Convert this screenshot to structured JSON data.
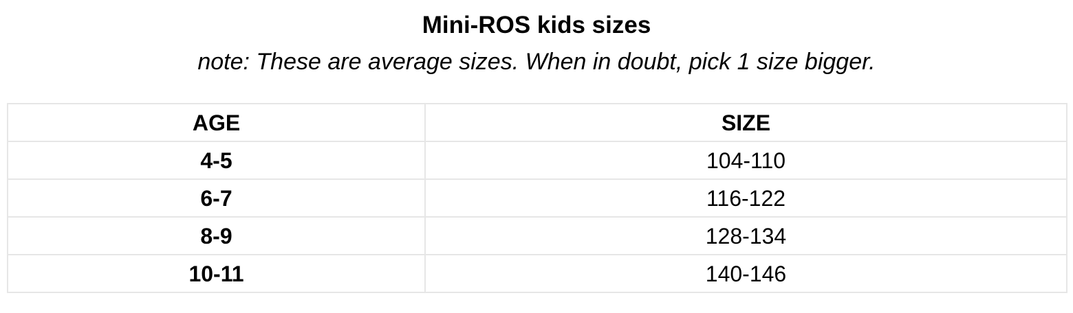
{
  "title": "Mini-ROS kids sizes",
  "note": "note: These are average sizes. When in doubt, pick 1 size bigger.",
  "table": {
    "headers": {
      "age": "AGE",
      "size": "SIZE"
    },
    "rows": [
      {
        "age": "4-5",
        "size": "104-110"
      },
      {
        "age": "6-7",
        "size": "116-122"
      },
      {
        "age": "8-9",
        "size": "128-134"
      },
      {
        "age": "10-11",
        "size": "140-146"
      }
    ]
  },
  "colors": {
    "text": "#000000",
    "border": "#e6e6e6",
    "background": "#ffffff"
  }
}
